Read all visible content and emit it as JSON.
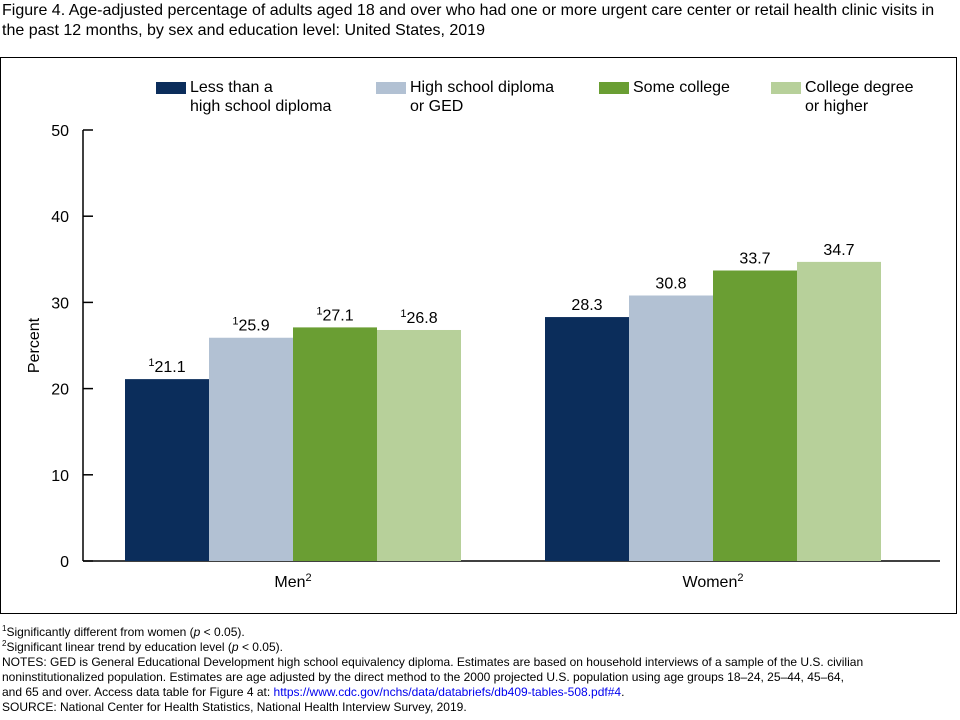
{
  "title": "Figure 4. Age-adjusted percentage of adults aged 18 and over who had one or more urgent care center or retail health clinic visits in the past 12 months, by sex and education level: United States, 2019",
  "chart_data": {
    "type": "bar",
    "ylabel": "Percent",
    "ylim": [
      0,
      50
    ],
    "yticks": [
      0,
      10,
      20,
      30,
      40,
      50
    ],
    "legend_position": "top",
    "grid": false,
    "categories": [
      {
        "label": "Men",
        "sup": "2"
      },
      {
        "label": "Women",
        "sup": "2"
      }
    ],
    "series": [
      {
        "name_lines": [
          "Less than a",
          "high school diploma"
        ],
        "color": "#0b2d5b",
        "values": [
          21.1,
          28.3
        ],
        "label_sups": [
          "1",
          ""
        ]
      },
      {
        "name_lines": [
          "High school diploma",
          "or GED"
        ],
        "color": "#b2c1d3",
        "values": [
          25.9,
          30.8
        ],
        "label_sups": [
          "1",
          ""
        ]
      },
      {
        "name_lines": [
          "Some college"
        ],
        "color": "#6a9e33",
        "values": [
          27.1,
          33.7
        ],
        "label_sups": [
          "1",
          ""
        ]
      },
      {
        "name_lines": [
          "College degree",
          "or higher"
        ],
        "color": "#b7d09a",
        "values": [
          26.8,
          34.7
        ],
        "label_sups": [
          "1",
          ""
        ]
      }
    ]
  },
  "notes": {
    "fn1_sup": "1",
    "fn1_a": "Significantly different from women (",
    "fn1_p": "p",
    "fn1_b": " < 0.05).",
    "fn2_sup": "2",
    "fn2_a": "Significant linear trend by education level (",
    "fn2_p": "p",
    "fn2_b": " < 0.05).",
    "notes_line1": "NOTES: GED is General Educational Development high school equivalency diploma. Estimates are based on household interviews of a sample of the U.S. civilian",
    "notes_line2": "noninstitutionalized population. Estimates are age adjusted by the direct method to the 2000 projected U.S. population using age groups 18–24, 25–44, 45–64,",
    "notes_line3a": "and 65 and over. Access data table for Figure 4 at: ",
    "link_text": "https://www.cdc.gov/nchs/data/databriefs/db409-tables-508.pdf#4",
    "notes_line3b": ".",
    "source": "SOURCE: National Center for Health Statistics, National Health Interview Survey, 2019."
  }
}
